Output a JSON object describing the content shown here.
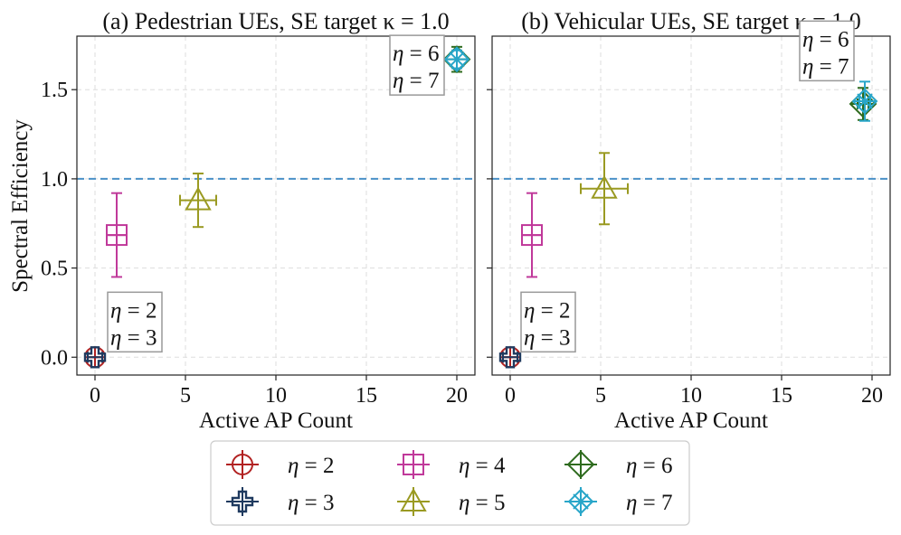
{
  "figure": {
    "ylabel": "Spectral Efficiency",
    "legend_placement": "bottom-center"
  },
  "legend": [
    {
      "label": "η = 2",
      "color": "#b22222",
      "marker": "circle-plus"
    },
    {
      "label": "η = 3",
      "color": "#1f3a5f",
      "marker": "thick-plus"
    },
    {
      "label": "η = 4",
      "color": "#c0399a",
      "marker": "square-plus"
    },
    {
      "label": "η = 5",
      "color": "#9a9a22",
      "marker": "triangle"
    },
    {
      "label": "η = 6",
      "color": "#2e6b1e",
      "marker": "diamond-plus"
    },
    {
      "label": "η = 7",
      "color": "#29a6c9",
      "marker": "snowflake"
    }
  ],
  "chart_data": [
    {
      "type": "scatter",
      "title": "(a) Pedestrian UEs, SE target κ = 1.0",
      "xlabel": "Active AP Count",
      "ylabel": "Spectral Efficiency",
      "xlim": [
        -1,
        21
      ],
      "ylim": [
        -0.1,
        1.8
      ],
      "xticks": [
        "0",
        "5",
        "10",
        "15",
        "20"
      ],
      "yticks": [
        "0.0",
        "0.5",
        "1.0",
        "1.5"
      ],
      "reference_line": {
        "y": 1.0,
        "style": "dashed",
        "color": "#4a90c8"
      },
      "grid": true,
      "annotations": [
        {
          "lines": [
            "η = 2",
            "η = 3"
          ],
          "x": 0.7,
          "y": 0.03
        },
        {
          "lines": [
            "η = 6",
            "η = 7"
          ],
          "x": 16.3,
          "y": 1.47
        }
      ],
      "points": [
        {
          "eta": 2,
          "x": 0.0,
          "y": 0.0,
          "xerr": 0.4,
          "yerr": 0.0
        },
        {
          "eta": 3,
          "x": 0.0,
          "y": 0.0,
          "xerr": 0.4,
          "yerr": 0.0
        },
        {
          "eta": 4,
          "x": 1.2,
          "y": 0.685,
          "xerr": 0.55,
          "yerr": 0.235
        },
        {
          "eta": 5,
          "x": 5.7,
          "y": 0.88,
          "xerr": 1.0,
          "yerr": 0.15
        },
        {
          "eta": 6,
          "x": 20.0,
          "y": 1.67,
          "xerr": 0.0,
          "yerr": 0.07
        },
        {
          "eta": 7,
          "x": 20.0,
          "y": 1.67,
          "xerr": 0.0,
          "yerr": 0.05
        }
      ]
    },
    {
      "type": "scatter",
      "title": "(b) Vehicular UEs, SE target κ = 1.0",
      "xlabel": "Active AP Count",
      "ylabel": "",
      "xlim": [
        -1,
        21
      ],
      "ylim": [
        -0.1,
        1.8
      ],
      "xticks": [
        "0",
        "5",
        "10",
        "15",
        "20"
      ],
      "yticks": [
        "0.0",
        "0.5",
        "1.0",
        "1.5"
      ],
      "reference_line": {
        "y": 1.0,
        "style": "dashed",
        "color": "#4a90c8"
      },
      "grid": true,
      "annotations": [
        {
          "lines": [
            "η = 2",
            "η = 3"
          ],
          "x": 0.6,
          "y": 0.03
        },
        {
          "lines": [
            "η = 6",
            "η = 7"
          ],
          "x": 16.0,
          "y": 1.55
        }
      ],
      "points": [
        {
          "eta": 2,
          "x": 0.0,
          "y": 0.0,
          "xerr": 0.4,
          "yerr": 0.0
        },
        {
          "eta": 3,
          "x": 0.0,
          "y": 0.0,
          "xerr": 0.4,
          "yerr": 0.0
        },
        {
          "eta": 4,
          "x": 1.2,
          "y": 0.685,
          "xerr": 0.55,
          "yerr": 0.235
        },
        {
          "eta": 5,
          "x": 5.2,
          "y": 0.945,
          "xerr": 1.3,
          "yerr": 0.2
        },
        {
          "eta": 6,
          "x": 19.5,
          "y": 1.42,
          "xerr": 0.3,
          "yerr": 0.09
        },
        {
          "eta": 7,
          "x": 19.6,
          "y": 1.435,
          "xerr": 0.3,
          "yerr": 0.11
        }
      ]
    }
  ]
}
